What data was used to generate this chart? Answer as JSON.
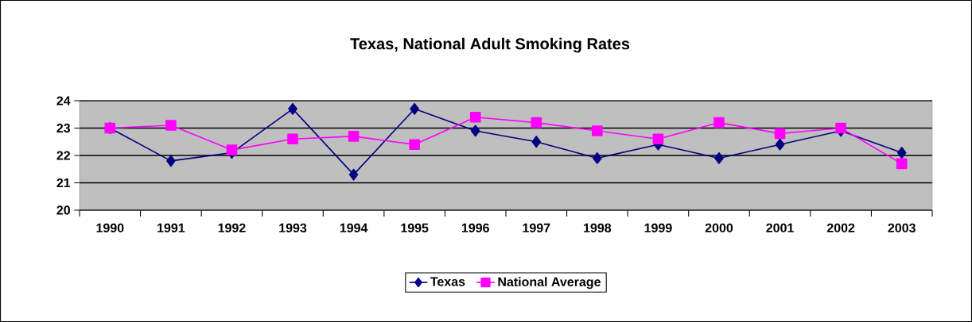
{
  "chart_data": {
    "type": "line",
    "title": "Texas, National Adult Smoking Rates",
    "categories": [
      "1990",
      "1991",
      "1992",
      "1993",
      "1994",
      "1995",
      "1996",
      "1997",
      "1998",
      "1999",
      "2000",
      "2001",
      "2002",
      "2003"
    ],
    "series": [
      {
        "name": "Texas",
        "color": "#000080",
        "marker": "diamond",
        "values": [
          23.0,
          21.8,
          22.1,
          23.7,
          21.3,
          23.7,
          22.9,
          22.5,
          21.9,
          22.4,
          21.9,
          22.4,
          22.9,
          22.1
        ]
      },
      {
        "name": "National Average",
        "color": "#ff00ff",
        "marker": "square",
        "values": [
          23.0,
          23.1,
          22.2,
          22.6,
          22.7,
          22.4,
          23.4,
          23.2,
          22.9,
          22.6,
          23.2,
          22.8,
          23.0,
          21.7
        ]
      }
    ],
    "ylim": [
      20,
      24
    ],
    "yticks": [
      20,
      21,
      22,
      23,
      24
    ],
    "grid": "y",
    "legend": "bottom",
    "line_style": "solid"
  }
}
